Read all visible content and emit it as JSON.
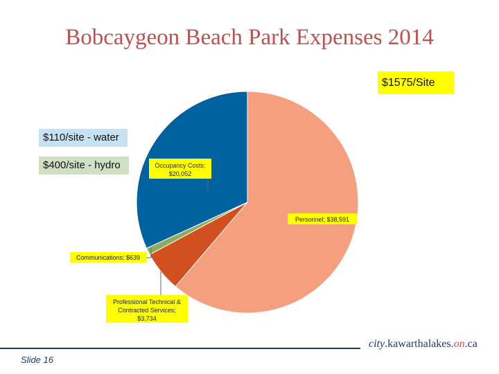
{
  "chart_data": {
    "type": "pie",
    "title": "Bobcaygeon Beach Park Expenses 2014",
    "slices": [
      {
        "label": "Personnel; $38,591",
        "name": "Personnel",
        "value": 38591,
        "color": "#f4a07e"
      },
      {
        "label": "Professional Technical & Contracted Services; $3,734",
        "name": "Professional Technical & Contracted Services",
        "value": 3734,
        "color": "#d2501f"
      },
      {
        "label": "Communications; $639",
        "name": "Communications",
        "value": 639,
        "color": "#8dab5c"
      },
      {
        "label": "Occupancy Costs; $20,052",
        "name": "Occupancy Costs",
        "value": 20052,
        "color": "#00629e"
      }
    ],
    "annotations": [
      "$1575/Site",
      "$110/site - water",
      "$400/site - hydro"
    ]
  },
  "notes": {
    "per_site": "$1575/Site",
    "water": "$110/site - water",
    "hydro": "$400/site - hydro"
  },
  "labels": {
    "personnel": "Personnel; $38,591",
    "professional_1": "Professional Technical &",
    "professional_2": "Contracted Services;",
    "professional_3": "$3,734",
    "communications": "Communications; $639",
    "occupancy_1": "Occupancy Costs;",
    "occupancy_2": "$20,052"
  },
  "footer": {
    "slide": "Slide 16",
    "url_city": "city",
    "url_domain": ".kawarthalakes.",
    "url_on": "on",
    "url_ca": ".ca"
  }
}
